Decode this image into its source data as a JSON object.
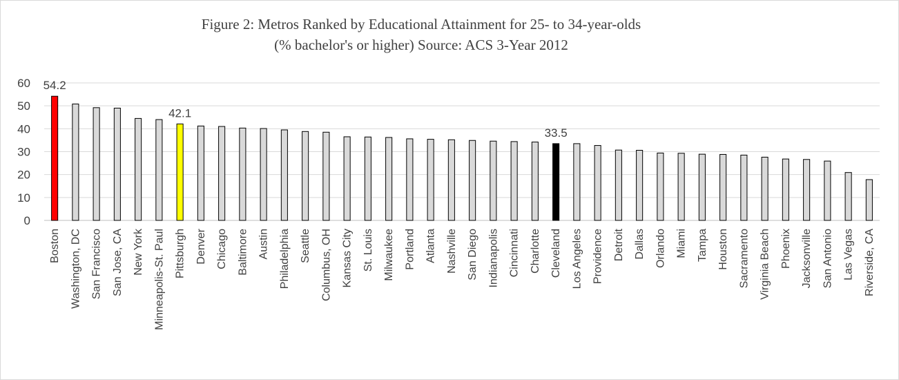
{
  "chart_data": {
    "type": "bar",
    "title_line1": "Figure 2: Metros Ranked by Educational Attainment for 25- to 34-year-olds",
    "title_line2": "(% bachelor's or higher) Source: ACS 3-Year 2012",
    "xlabel": "",
    "ylabel": "",
    "ylim": [
      0,
      60
    ],
    "yticks": [
      0,
      10,
      20,
      30,
      40,
      50,
      60
    ],
    "grid": true,
    "legend": "none",
    "categories": [
      "Boston",
      "Washington, DC",
      "San Francisco",
      "San Jose, CA",
      "New York",
      "Minneapolis-St. Paul",
      "Pittsburgh",
      "Denver",
      "Chicago",
      "Baltimore",
      "Austin",
      "Philadelphia",
      "Seattle",
      "Columbus, OH",
      "Kansas City",
      "St. Louis",
      "Milwaukee",
      "Portland",
      "Atlanta",
      "Nashville",
      "San Diego",
      "Indianapolis",
      "Cincinnati",
      "Charlotte",
      "Cleveland",
      "Los Angeles",
      "Providence",
      "Detroit",
      "Dallas",
      "Orlando",
      "Miami",
      "Tampa",
      "Houston",
      "Sacramento",
      "Virginia Beach",
      "Phoenix",
      "Jacksonville",
      "San Antonio",
      "Las Vegas",
      "Riverside, CA"
    ],
    "values": [
      54.2,
      50.8,
      49.2,
      49.0,
      44.5,
      44.0,
      42.1,
      41.2,
      41.0,
      40.3,
      40.1,
      39.5,
      38.8,
      38.5,
      36.5,
      36.4,
      36.2,
      35.6,
      35.4,
      35.2,
      34.9,
      34.6,
      34.4,
      34.2,
      33.5,
      33.5,
      32.7,
      30.7,
      30.6,
      29.4,
      29.3,
      28.9,
      28.8,
      28.5,
      27.6,
      26.8,
      26.6,
      25.9,
      20.9,
      17.8
    ],
    "highlight_colors": {
      "Boston": "#ff0000",
      "Pittsburgh": "#ffff00",
      "Cleveland": "#000000"
    },
    "default_bar_color": "#d9d9d9",
    "data_labels": [
      {
        "category": "Boston",
        "text": "54.2"
      },
      {
        "category": "Pittsburgh",
        "text": "42.1"
      },
      {
        "category": "Cleveland",
        "text": "33.5"
      }
    ]
  }
}
